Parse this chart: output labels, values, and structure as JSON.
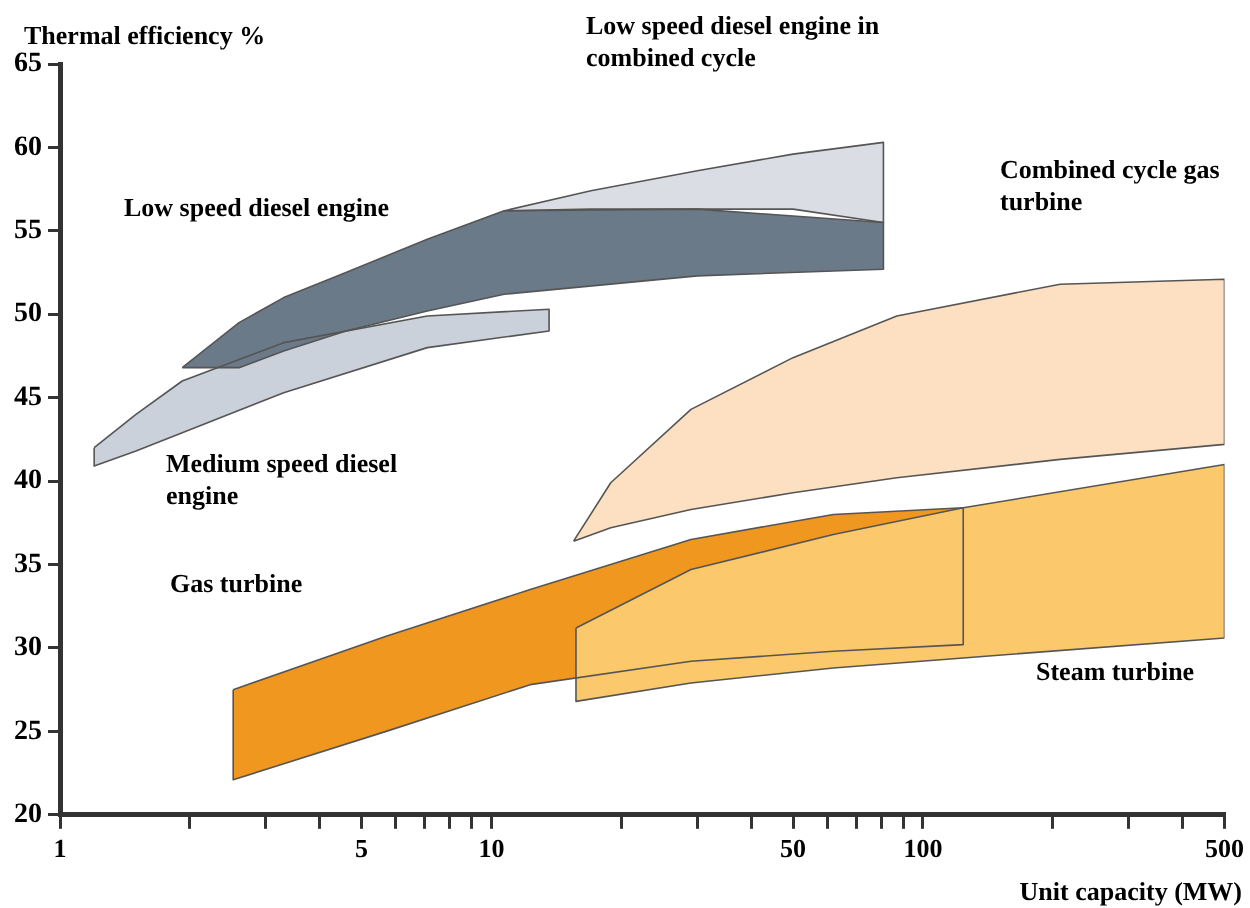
{
  "chart_data": {
    "type": "area",
    "xlabel": "Unit capacity (MW)",
    "ylabel": "Thermal efficiency %",
    "log": "x",
    "grid": false,
    "legend": false,
    "xlim": [
      1,
      500
    ],
    "ylim": [
      20,
      65
    ],
    "xticks": [
      1,
      {
        "value": 2,
        "label": null
      },
      {
        "value": 3,
        "label": null
      },
      {
        "value": 4,
        "label": null
      },
      5,
      {
        "value": 6,
        "label": null
      },
      {
        "value": 7,
        "label": null
      },
      {
        "value": 8,
        "label": null
      },
      {
        "value": 9,
        "label": null
      },
      10,
      {
        "value": 20,
        "label": null
      },
      {
        "value": 30,
        "label": null
      },
      {
        "value": 40,
        "label": null
      },
      50,
      {
        "value": 60,
        "label": null
      },
      {
        "value": 70,
        "label": null
      },
      {
        "value": 80,
        "label": null
      },
      {
        "value": 90,
        "label": null
      },
      100,
      {
        "value": 200,
        "label": null
      },
      {
        "value": 300,
        "label": null
      },
      {
        "value": 400,
        "label": null
      },
      500
    ],
    "yticks": [
      20,
      25,
      30,
      35,
      40,
      45,
      50,
      55,
      60,
      65
    ],
    "series": [
      {
        "name": "Medium speed diesel engine",
        "color": "#cbd1da",
        "x": [
          1.2,
          1.5,
          1.92,
          3.3,
          7.1,
          13.6,
          13.6,
          7.1,
          3.3,
          1.92,
          1.5,
          1.2
        ],
        "values": [
          42,
          44,
          46,
          48.3,
          49.9,
          50.3,
          49,
          48,
          45.3,
          42.9,
          41.8,
          40.9
        ]
      },
      {
        "name": "Low speed diesel engine",
        "color": "#6b7a88",
        "x": [
          1.92,
          2.6,
          3.3,
          4.6,
          7.1,
          10.7,
          30,
          81,
          81,
          30,
          10.7,
          7.1,
          4.6,
          3.3,
          2.6
        ],
        "values": [
          46.8,
          49.5,
          51,
          52.5,
          54.5,
          56.2,
          56.3,
          55.5,
          52.7,
          52.3,
          51.2,
          50.2,
          49,
          47.8,
          46.8
        ]
      },
      {
        "name": "Low speed diesel engine in combined cycle",
        "color": "#dadde3",
        "x": [
          10.7,
          17,
          30,
          50,
          81,
          81,
          50,
          30,
          17
        ],
        "values": [
          56.2,
          57.4,
          58.6,
          59.6,
          60.3,
          55.5,
          56.3,
          56.3,
          56.3
        ]
      },
      {
        "name": "Combined cycle gas turbine",
        "color": "#fde0c1",
        "x": [
          15.5,
          18.9,
          29,
          50,
          87,
          208,
          500,
          500,
          208,
          87,
          50,
          29,
          18.9
        ],
        "values": [
          36.4,
          39.9,
          44.3,
          47.4,
          49.9,
          51.8,
          52.1,
          42.2,
          41.3,
          40.2,
          39.3,
          38.3,
          37.2
        ]
      },
      {
        "name": "Gas turbine",
        "color": "#f0971f",
        "x": [
          2.52,
          5.7,
          12.3,
          29,
          62,
          124,
          124,
          62,
          29,
          12.3,
          5.7,
          2.52
        ],
        "values": [
          27.5,
          30.7,
          33.5,
          36.5,
          38,
          38.4,
          30.2,
          29.8,
          29.2,
          27.8,
          25,
          22.1
        ]
      },
      {
        "name": "Steam turbine",
        "color": "#fbc96b",
        "x": [
          15.7,
          29,
          62,
          124,
          500,
          500,
          124,
          62,
          29,
          15.7
        ],
        "values": [
          31.2,
          34.7,
          36.8,
          38.4,
          41,
          30.6,
          29.4,
          28.8,
          27.9,
          26.8
        ]
      }
    ]
  }
}
